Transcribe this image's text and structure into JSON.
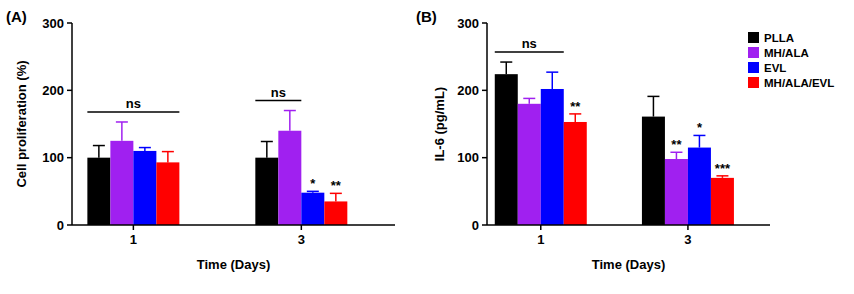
{
  "chart_data": [
    {
      "type": "bar",
      "title": "(A)",
      "x_label": "Time (Days)",
      "y_label": "Cell proliferation (%)",
      "categories": [
        "1",
        "3"
      ],
      "ylim": [
        0,
        300
      ],
      "yticks": [
        0,
        100,
        200,
        300
      ],
      "grid": false,
      "series": [
        {
          "color": "#000000",
          "values": [
            100,
            100
          ],
          "errors": [
            18,
            24
          ]
        },
        {
          "color": "#a020f0",
          "values": [
            125,
            140
          ],
          "errors": [
            28,
            30
          ]
        },
        {
          "color": "#0000ff",
          "values": [
            110,
            48
          ],
          "errors": [
            5,
            2
          ]
        },
        {
          "color": "#ff0000",
          "values": [
            93,
            35
          ],
          "errors": [
            16,
            12
          ]
        }
      ],
      "annotations": [
        {
          "text": "ns",
          "category": 0,
          "series": [
            0,
            1,
            2,
            3
          ]
        },
        {
          "text": "ns",
          "category": 1,
          "series": [
            0,
            1
          ]
        },
        {
          "text": "*",
          "category": 1,
          "series": [
            2
          ]
        },
        {
          "text": "**",
          "category": 1,
          "series": [
            3
          ]
        }
      ]
    },
    {
      "type": "bar",
      "title": "(B)",
      "x_label": "Time (Days)",
      "y_label": "IL-6 (pg/mL)",
      "categories": [
        "1",
        "3"
      ],
      "ylim": [
        0,
        300
      ],
      "yticks": [
        0,
        100,
        200,
        300
      ],
      "grid": false,
      "legend": "upper right",
      "series": [
        {
          "name": "PLLA",
          "color": "#000000",
          "values": [
            224,
            161
          ],
          "errors": [
            18,
            30
          ]
        },
        {
          "name": "MH/ALA",
          "color": "#a020f0",
          "values": [
            180,
            98
          ],
          "errors": [
            8,
            10
          ]
        },
        {
          "name": "EVL",
          "color": "#0000ff",
          "values": [
            202,
            115
          ],
          "errors": [
            25,
            18
          ]
        },
        {
          "name": "MH/ALA/EVL",
          "color": "#ff0000",
          "values": [
            153,
            70
          ],
          "errors": [
            12,
            3
          ]
        }
      ],
      "annotations": [
        {
          "text": "ns",
          "category": 0,
          "series": [
            0,
            1,
            2
          ]
        },
        {
          "text": "**",
          "category": 0,
          "series": [
            3
          ]
        },
        {
          "text": "**",
          "category": 1,
          "series": [
            1
          ]
        },
        {
          "text": "*",
          "category": 1,
          "series": [
            2
          ]
        },
        {
          "text": "***",
          "category": 1,
          "series": [
            3
          ]
        }
      ]
    }
  ]
}
